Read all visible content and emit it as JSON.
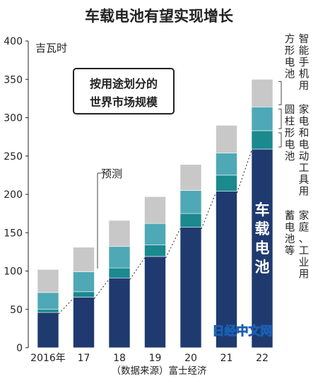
{
  "title": "车载电池有望实现增长",
  "subtitle_box": [
    "按用途划分的",
    "世界市场规模"
  ],
  "y_unit": "吉瓦时",
  "forecast_label": "预测",
  "source": "（数据来源）富士经济",
  "watermark": "日经中文网",
  "colors": {
    "automotive": "#1f3a6e",
    "storage": "#1a8a8f",
    "cylindrical": "#4fa8b6",
    "smartphone": "#c8c8c8",
    "text": "#222222"
  },
  "chart_data": {
    "type": "bar",
    "stacked": true,
    "categories": [
      "2016年",
      "17",
      "18",
      "19",
      "20",
      "21",
      "22"
    ],
    "forecast_from_index": 2,
    "series": [
      {
        "name": "车载电池",
        "values": [
          46,
          66,
          91,
          119,
          157,
          204,
          259
        ],
        "color": "#1f3a6e"
      },
      {
        "name": "家庭、工业用蓄电池等",
        "values": [
          4,
          7,
          13,
          15,
          18,
          21,
          24
        ],
        "color": "#1a8a8f"
      },
      {
        "name": "家电和电动工具用圆柱形电池",
        "values": [
          22,
          26,
          28,
          28,
          30,
          29,
          31
        ],
        "color": "#4fa8b6"
      },
      {
        "name": "智能手机用方形电池",
        "values": [
          30,
          32,
          34,
          35,
          34,
          36,
          36
        ],
        "color": "#c8c8c8"
      }
    ],
    "yticks": [
      0,
      50,
      100,
      150,
      200,
      250,
      300,
      350,
      400
    ],
    "ylim": [
      0,
      400
    ],
    "grid": false,
    "legend_labels": [
      {
        "series": 3,
        "line1": "方形电池",
        "line2": "智能手机用"
      },
      {
        "series": 2,
        "line1": "圆柱形电池",
        "line2": "家电和电动工具用"
      },
      {
        "series": 1,
        "line1": "蓄电池等",
        "line2": "家庭、工业用"
      }
    ],
    "inbar_label": "车载电池"
  }
}
